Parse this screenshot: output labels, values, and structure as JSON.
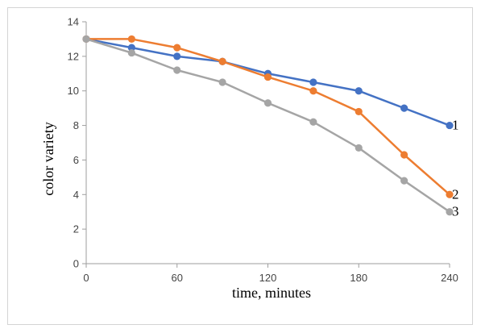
{
  "chart_data": {
    "type": "line",
    "title": "",
    "xlabel": "time, minutes",
    "ylabel": "color variety",
    "xlim": [
      0,
      240
    ],
    "ylim": [
      0,
      14
    ],
    "x_ticks": [
      "0",
      "60",
      "120",
      "180",
      "240"
    ],
    "y_ticks": [
      "0",
      "2",
      "4",
      "6",
      "8",
      "10",
      "12",
      "14"
    ],
    "grid": false,
    "legend": "none",
    "x": [
      0,
      30,
      60,
      90,
      120,
      150,
      180,
      210,
      240
    ],
    "series": [
      {
        "name": "1",
        "color": "#4472c4",
        "values": [
          13,
          12.5,
          12.0,
          11.7,
          11.0,
          10.5,
          10.0,
          9.0,
          8.0
        ]
      },
      {
        "name": "2",
        "color": "#ed7d31",
        "values": [
          13,
          13.0,
          12.5,
          11.7,
          10.8,
          10.0,
          8.8,
          6.3,
          4.0
        ]
      },
      {
        "name": "3",
        "color": "#a5a5a5",
        "values": [
          13,
          12.2,
          11.2,
          10.5,
          9.3,
          8.2,
          6.7,
          4.8,
          3.0
        ]
      }
    ]
  }
}
